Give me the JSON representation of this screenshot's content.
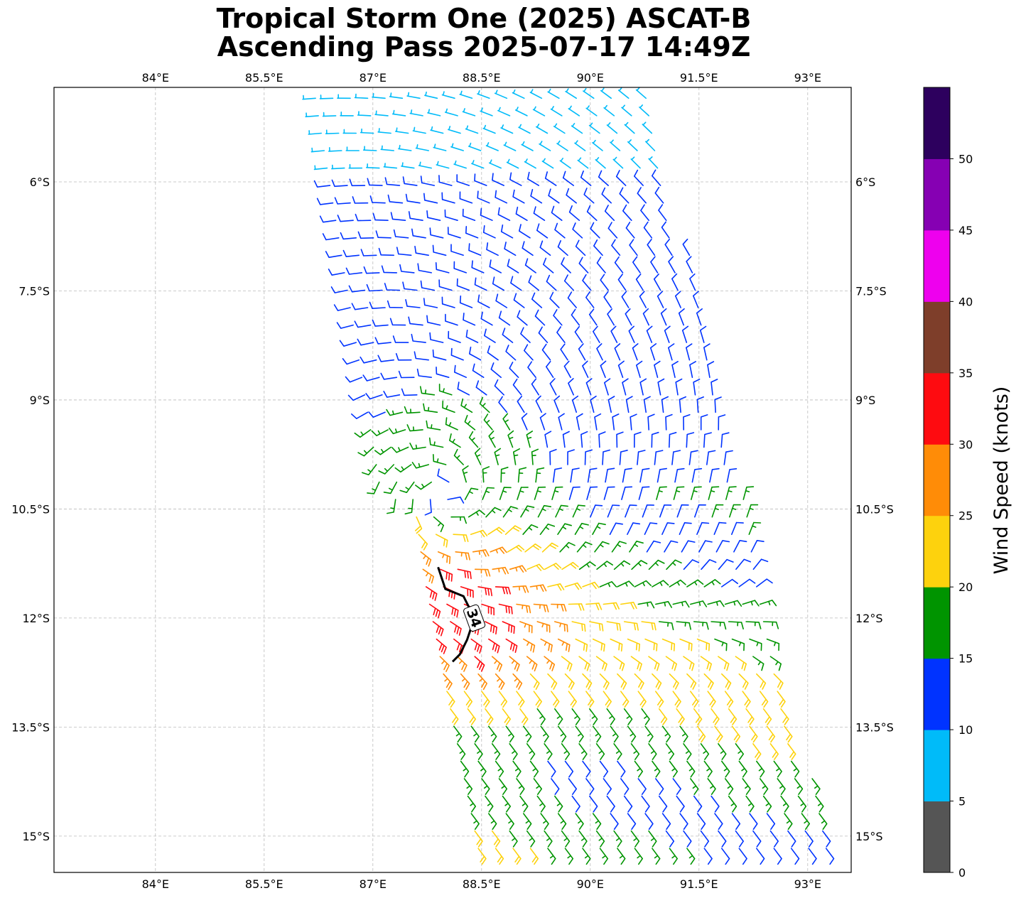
{
  "chart_data": {
    "type": "wind-barb-map",
    "title": "Tropical Storm One (2025) ASCAT-B",
    "subtitle": "Ascending Pass 2025-07-17 14:49Z",
    "x_ticks": [
      {
        "value": 84.0,
        "label": "84°E"
      },
      {
        "value": 85.5,
        "label": "85.5°E"
      },
      {
        "value": 87.0,
        "label": "87°E"
      },
      {
        "value": 88.5,
        "label": "88.5°E"
      },
      {
        "value": 90.0,
        "label": "90°E"
      },
      {
        "value": 91.5,
        "label": "91.5°E"
      },
      {
        "value": 93.0,
        "label": "93°E"
      }
    ],
    "y_ticks": [
      {
        "value": -6.0,
        "label": "6°S"
      },
      {
        "value": -7.5,
        "label": "7.5°S"
      },
      {
        "value": -9.0,
        "label": "9°S"
      },
      {
        "value": -10.5,
        "label": "10.5°S"
      },
      {
        "value": -12.0,
        "label": "12°S"
      },
      {
        "value": -13.5,
        "label": "13.5°S"
      },
      {
        "value": -15.0,
        "label": "15°S"
      }
    ],
    "xlim": [
      82.6,
      93.6
    ],
    "ylim": [
      -15.5,
      -4.7
    ],
    "grid": true,
    "colorbar": {
      "label": "Wind Speed (knots)",
      "ticks": [
        0,
        5,
        10,
        15,
        20,
        25,
        30,
        35,
        40,
        45,
        50
      ],
      "bins": [
        {
          "min": 0,
          "max": 5,
          "color": "#555555"
        },
        {
          "min": 5,
          "max": 10,
          "color": "#00bbf9"
        },
        {
          "min": 10,
          "max": 15,
          "color": "#0033ff"
        },
        {
          "min": 15,
          "max": 20,
          "color": "#009400"
        },
        {
          "min": 20,
          "max": 25,
          "color": "#fdd20d"
        },
        {
          "min": 25,
          "max": 30,
          "color": "#ff8c07"
        },
        {
          "min": 30,
          "max": 35,
          "color": "#fe0b10"
        },
        {
          "min": 35,
          "max": 40,
          "color": "#7e3e2a"
        },
        {
          "min": 40,
          "max": 45,
          "color": "#ee00ee"
        },
        {
          "min": 45,
          "max": 50,
          "color": "#8600b3"
        },
        {
          "min": 50,
          "max": 55,
          "color": "#2d005e"
        }
      ]
    },
    "swath": {
      "corners": [
        [
          86.1,
          -4.8
        ],
        [
          90.9,
          -4.8
        ],
        [
          93.4,
          -15.4
        ],
        [
          88.4,
          -15.4
        ]
      ],
      "west_edge_lon_at": [
        [
          -4.8,
          86.1
        ],
        [
          -10.2,
          87.0
        ],
        [
          -10.6,
          87.5
        ],
        [
          -11.4,
          87.6
        ],
        [
          -15.4,
          88.4
        ]
      ]
    },
    "storm": {
      "center": [
        88.0,
        -10.3
      ]
    },
    "contour": {
      "level_label": "34",
      "points": [
        [
          87.9,
          -11.3
        ],
        [
          88.0,
          -11.6
        ],
        [
          88.25,
          -11.7
        ],
        [
          88.4,
          -12.0
        ],
        [
          88.3,
          -12.3
        ],
        [
          88.2,
          -12.5
        ],
        [
          88.1,
          -12.6
        ]
      ]
    }
  }
}
